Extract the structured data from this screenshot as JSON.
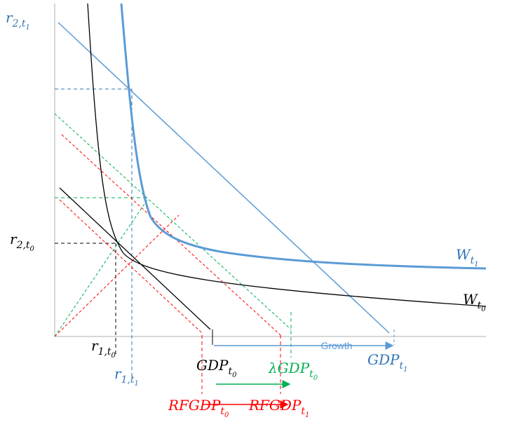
{
  "labels": [
    {
      "base": "r",
      "sub": "2,t",
      "subsub": "1"
    },
    {
      "base": "r",
      "sub": "2,t",
      "subsub": "0"
    },
    {
      "base": "r",
      "sub": "1,t",
      "subsub": "0"
    },
    {
      "base": "r",
      "sub": "1,t",
      "subsub": "1"
    },
    {
      "base": "GDP",
      "sub": "t",
      "subsub": "0"
    },
    {
      "base": "λGDP",
      "sub": "t",
      "subsub": "0"
    },
    {
      "base": "RFGDP",
      "sub": "t",
      "subsub": "0"
    },
    {
      "base": "RFGDP",
      "sub": "t",
      "subsub": "1"
    },
    {
      "base": "GDP",
      "sub": "t",
      "subsub": "1"
    },
    {
      "base": "W",
      "sub": "t",
      "subsub": "1"
    },
    {
      "base": "W",
      "sub": "t",
      "subsub": "0"
    }
  ],
  "growth": "Growth"
}
